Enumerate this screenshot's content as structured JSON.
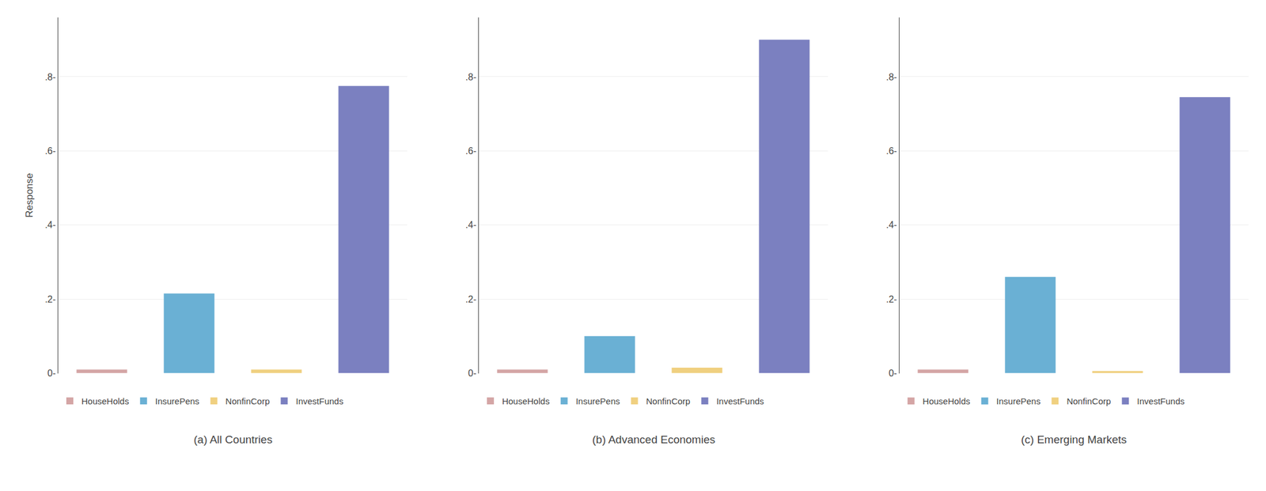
{
  "chart_data": [
    {
      "type": "bar",
      "title": "(a) All Countries",
      "ylabel": "Response",
      "categories": [
        "HouseHolds",
        "InsurePens",
        "NonfinCorp",
        "InvestFunds"
      ],
      "values": [
        0.01,
        0.215,
        0.01,
        0.775
      ],
      "colors": [
        "#d4a5a5",
        "#6ab0d4",
        "#f0d080",
        "#7b80c0"
      ],
      "ylim": [
        0,
        0.96
      ],
      "yticks": [
        {
          "value": 0.0,
          "label": "0-"
        },
        {
          "value": 0.2,
          "label": ".2-"
        },
        {
          "value": 0.4,
          "label": ".4-"
        },
        {
          "value": 0.6,
          "label": ".6-"
        },
        {
          "value": 0.8,
          "label": ".8-"
        }
      ],
      "grid": true,
      "legend": "bottom",
      "tick_labels": "y"
    },
    {
      "type": "bar",
      "title": "(b) Advanced Economies",
      "categories": [
        "HouseHolds",
        "InsurePens",
        "NonfinCorp",
        "InvestFunds"
      ],
      "values": [
        0.01,
        0.1,
        0.015,
        0.9
      ],
      "colors": [
        "#d4a5a5",
        "#6ab0d4",
        "#f0d080",
        "#7b80c0"
      ],
      "ylim": [
        0,
        0.96
      ],
      "yticks": [
        {
          "value": 0.0,
          "label": "0-"
        },
        {
          "value": 0.2,
          "label": ".2-"
        },
        {
          "value": 0.4,
          "label": ".4-"
        },
        {
          "value": 0.6,
          "label": ".6-"
        },
        {
          "value": 0.8,
          "label": ".8-"
        }
      ],
      "grid": true,
      "legend": "bottom",
      "tick_labels": "y"
    },
    {
      "type": "bar",
      "title": "(c) Emerging Markets",
      "categories": [
        "HouseHolds",
        "InsurePens",
        "NonfinCorp",
        "InvestFunds"
      ],
      "values": [
        0.01,
        0.26,
        0.006,
        0.745
      ],
      "colors": [
        "#d4a5a5",
        "#6ab0d4",
        "#f0d080",
        "#7b80c0"
      ],
      "ylim": [
        0,
        0.96
      ],
      "yticks": [
        {
          "value": 0.0,
          "label": "0-"
        },
        {
          "value": 0.2,
          "label": ".2-"
        },
        {
          "value": 0.4,
          "label": ".4-"
        },
        {
          "value": 0.6,
          "label": ".6-"
        },
        {
          "value": 0.8,
          "label": ".8-"
        }
      ],
      "grid": true,
      "legend": "bottom",
      "tick_labels": "y"
    }
  ]
}
